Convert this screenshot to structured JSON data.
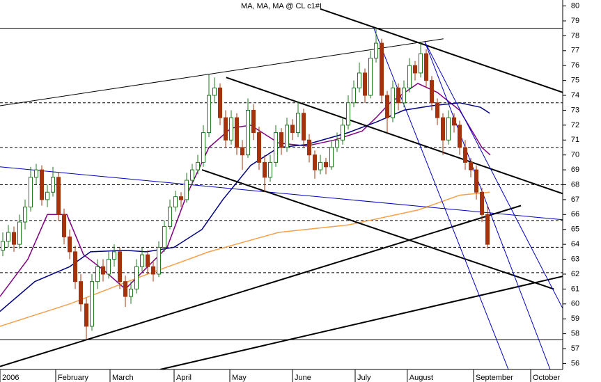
{
  "chart_data": {
    "type": "candlestick",
    "title": "MA, MA, MA @ CL c1#I",
    "xlim": [
      -0.5,
      100.5
    ],
    "ylim": [
      55.6,
      80.4
    ],
    "xticks": [
      {
        "value": -0.5,
        "label": "2006"
      },
      {
        "value": 9.5,
        "label": "February"
      },
      {
        "value": 19.25,
        "label": "March"
      },
      {
        "value": 30.75,
        "label": "April"
      },
      {
        "value": 40.75,
        "label": "May"
      },
      {
        "value": 52,
        "label": "June"
      },
      {
        "value": 63.25,
        "label": "July"
      },
      {
        "value": 72.6,
        "label": "August"
      },
      {
        "value": 84.5,
        "label": "September"
      },
      {
        "value": 94.75,
        "label": "October"
      }
    ],
    "yticks": [
      56,
      57,
      58,
      59,
      60,
      61,
      62,
      63,
      64,
      65,
      66,
      67,
      68,
      69,
      70,
      71,
      72,
      73,
      74,
      75,
      76,
      77,
      78,
      79,
      80
    ],
    "up_color": "#1f7a1f",
    "down_color": "#a5320c",
    "candles": [
      [
        63.6,
        64.8,
        63.2,
        64.2
      ],
      [
        64.2,
        65.3,
        63.8,
        64.8
      ],
      [
        64.8,
        65.2,
        63.5,
        64.0
      ],
      [
        64.0,
        66.0,
        63.7,
        65.5
      ],
      [
        65.5,
        67.0,
        65.0,
        66.5
      ],
      [
        66.5,
        69.2,
        66.2,
        68.5
      ],
      [
        68.5,
        69.4,
        68.0,
        69.0
      ],
      [
        69.0,
        69.3,
        66.6,
        67.0
      ],
      [
        67.0,
        68.0,
        66.5,
        67.5
      ],
      [
        67.5,
        69.2,
        67.2,
        68.5
      ],
      [
        68.5,
        68.8,
        65.6,
        66.0
      ],
      [
        66.0,
        66.4,
        64.0,
        64.5
      ],
      [
        64.5,
        65.0,
        63.0,
        63.5
      ],
      [
        63.5,
        63.9,
        61.0,
        61.5
      ],
      [
        61.5,
        62.0,
        59.5,
        60.0
      ],
      [
        60.0,
        60.4,
        57.6,
        58.5
      ],
      [
        58.5,
        62.0,
        58.2,
        61.5
      ],
      [
        61.5,
        63.0,
        61.0,
        62.5
      ],
      [
        62.5,
        63.0,
        61.5,
        62.0
      ],
      [
        62.0,
        63.5,
        61.7,
        63.0
      ],
      [
        63.0,
        64.0,
        62.5,
        63.5
      ],
      [
        63.5,
        63.8,
        61.0,
        61.5
      ],
      [
        61.5,
        61.9,
        59.8,
        60.5
      ],
      [
        60.5,
        61.5,
        60.0,
        61.0
      ],
      [
        61.0,
        63.0,
        60.7,
        62.5
      ],
      [
        62.5,
        63.8,
        62.2,
        63.3
      ],
      [
        63.3,
        63.6,
        62.0,
        62.5
      ],
      [
        62.5,
        62.9,
        61.5,
        62.0
      ],
      [
        62.0,
        64.2,
        61.8,
        63.8
      ],
      [
        63.8,
        65.6,
        63.5,
        65.2
      ],
      [
        65.2,
        67.0,
        65.0,
        66.5
      ],
      [
        66.5,
        67.6,
        66.2,
        67.2
      ],
      [
        67.2,
        67.5,
        66.5,
        67.0
      ],
      [
        67.0,
        68.8,
        66.8,
        68.3
      ],
      [
        68.3,
        69.4,
        68.0,
        69.0
      ],
      [
        69.0,
        70.0,
        68.7,
        69.5
      ],
      [
        69.5,
        72.0,
        69.2,
        71.5
      ],
      [
        71.5,
        75.4,
        71.2,
        74.0
      ],
      [
        74.0,
        75.2,
        73.5,
        74.5
      ],
      [
        74.5,
        74.8,
        72.0,
        72.5
      ],
      [
        72.5,
        73.0,
        70.5,
        71.0
      ],
      [
        71.0,
        73.0,
        70.7,
        72.5
      ],
      [
        72.5,
        72.8,
        70.0,
        70.5
      ],
      [
        70.5,
        71.0,
        69.0,
        70.0
      ],
      [
        70.0,
        73.8,
        69.8,
        73.0
      ],
      [
        73.0,
        73.4,
        71.0,
        71.5
      ],
      [
        71.5,
        71.9,
        69.0,
        69.5
      ],
      [
        69.5,
        70.0,
        67.5,
        68.5
      ],
      [
        68.5,
        70.0,
        68.2,
        69.5
      ],
      [
        69.5,
        72.0,
        69.2,
        71.5
      ],
      [
        71.5,
        71.8,
        70.0,
        70.5
      ],
      [
        70.5,
        72.5,
        70.2,
        72.0
      ],
      [
        72.0,
        72.4,
        71.0,
        71.5
      ],
      [
        71.5,
        73.6,
        71.2,
        72.8
      ],
      [
        72.8,
        73.1,
        70.5,
        71.0
      ],
      [
        71.0,
        71.4,
        69.5,
        70.0
      ],
      [
        70.0,
        70.3,
        68.4,
        69.0
      ],
      [
        69.0,
        70.0,
        68.7,
        69.5
      ],
      [
        69.5,
        69.8,
        68.7,
        69.2
      ],
      [
        69.2,
        71.0,
        69.0,
        70.5
      ],
      [
        70.5,
        71.5,
        70.2,
        71.0
      ],
      [
        71.0,
        72.5,
        70.7,
        72.0
      ],
      [
        72.0,
        74.0,
        71.7,
        73.5
      ],
      [
        73.5,
        75.0,
        73.2,
        74.5
      ],
      [
        74.5,
        76.2,
        74.2,
        75.5
      ],
      [
        75.5,
        75.8,
        73.5,
        74.0
      ],
      [
        74.0,
        77.0,
        73.8,
        76.5
      ],
      [
        76.5,
        78.5,
        76.2,
        77.5
      ],
      [
        77.5,
        77.8,
        73.5,
        74.0
      ],
      [
        74.0,
        74.3,
        71.5,
        72.5
      ],
      [
        72.5,
        75.0,
        72.2,
        74.5
      ],
      [
        74.5,
        74.8,
        73.0,
        73.5
      ],
      [
        73.5,
        75.0,
        73.2,
        74.5
      ],
      [
        74.5,
        76.5,
        74.2,
        76.0
      ],
      [
        76.0,
        76.3,
        75.0,
        75.5
      ],
      [
        75.5,
        77.6,
        75.2,
        76.8
      ],
      [
        76.8,
        77.1,
        74.5,
        75.0
      ],
      [
        75.0,
        75.3,
        73.0,
        73.5
      ],
      [
        73.5,
        73.8,
        72.0,
        72.5
      ],
      [
        72.5,
        72.8,
        70.0,
        71.0
      ],
      [
        71.0,
        73.0,
        70.7,
        72.5
      ],
      [
        72.5,
        72.8,
        71.5,
        72.0
      ],
      [
        72.0,
        72.3,
        70.0,
        70.5
      ],
      [
        70.5,
        71.0,
        69.0,
        69.5
      ],
      [
        69.5,
        69.8,
        68.5,
        69.0
      ],
      [
        69.0,
        69.3,
        67.0,
        67.5
      ],
      [
        67.5,
        67.8,
        65.5,
        66.0
      ],
      [
        66.0,
        66.6,
        63.7,
        64.0
      ]
    ],
    "series": [
      {
        "color": "#800080",
        "x": [
          -0.5,
          4.5,
          8,
          11.5,
          14.5,
          18,
          22,
          26,
          29.5,
          33,
          37,
          41,
          44.5,
          49.5,
          54.5,
          59.5,
          64.5,
          67,
          69.5,
          74.5,
          78,
          82,
          86,
          87.5
        ],
        "values": [
          60.5,
          63,
          66,
          66,
          63.3,
          62.3,
          61,
          62.5,
          63.8,
          67.3,
          70.5,
          71.8,
          72,
          70.8,
          70.6,
          71,
          71.6,
          72.5,
          73.5,
          74.8,
          74.2,
          73,
          70.5,
          70
        ]
      },
      {
        "color": "#000080",
        "x": [
          -0.5,
          5.75,
          12,
          15.75,
          22,
          25.75,
          30.75,
          35.75,
          39.5,
          44.5,
          49.5,
          54.5,
          62,
          67,
          72,
          77,
          82,
          85.75,
          87.4
        ],
        "values": [
          59.5,
          61.5,
          62.5,
          63.5,
          63.6,
          63.5,
          63.8,
          65,
          67,
          69.3,
          70.5,
          70.7,
          71.5,
          72.2,
          73,
          73.3,
          73.5,
          73.2,
          72.8
        ]
      },
      {
        "color": "#f5a04a",
        "x": [
          -0.5,
          12,
          24.5,
          37,
          49.5,
          62,
          74.5,
          82,
          87.4
        ],
        "values": [
          58.5,
          60,
          61.8,
          63.5,
          64.8,
          65.3,
          66.3,
          67.3,
          67.5
        ]
      }
    ],
    "lines": [
      {
        "color": "#000000",
        "width": 1,
        "x": [
          -0.5,
          79.1
        ],
        "y": [
          73.3,
          77.8
        ]
      },
      {
        "color": "#0000c0",
        "width": 1,
        "x": [
          -0.5,
          102
        ],
        "y": [
          69.2,
          65.6
        ]
      },
      {
        "color": "#000000",
        "width": 2,
        "x": [
          40.1,
          100.5
        ],
        "y": [
          75.2,
          67.4
        ]
      },
      {
        "color": "#000000",
        "width": 2,
        "x": [
          35.75,
          98.9
        ],
        "y": [
          69,
          61
        ]
      },
      {
        "color": "#000000",
        "width": 2,
        "x": [
          -0.5,
          93
        ],
        "y": [
          55.8,
          66.6
        ]
      },
      {
        "color": "#000000",
        "width": 2,
        "x": [
          28.25,
          104.5
        ],
        "y": [
          55.6,
          62.2
        ]
      },
      {
        "color": "#000000",
        "width": 2,
        "x": [
          57,
          100.5
        ],
        "y": [
          79.8,
          74.2
        ]
      },
      {
        "color": "#0000c0",
        "width": 1,
        "x": [
          66.6,
          90.75
        ],
        "y": [
          78.5,
          55.6
        ]
      },
      {
        "color": "#0000c0",
        "width": 1,
        "x": [
          75.75,
          100.5
        ],
        "y": [
          77.6,
          59.7
        ]
      },
      {
        "color": "#0000c0",
        "width": 1,
        "x": [
          75.75,
          98.25
        ],
        "y": [
          77.6,
          55.6
        ]
      }
    ],
    "levels": [
      {
        "value": 78.5,
        "style": "solid"
      },
      {
        "value": 57.6,
        "style": "solid"
      },
      {
        "value": 73.5,
        "style": "dashed"
      },
      {
        "value": 70.5,
        "style": "dashed"
      },
      {
        "value": 68,
        "style": "dashed"
      },
      {
        "value": 65.6,
        "style": "dashed"
      },
      {
        "value": 63.8,
        "style": "dashed"
      },
      {
        "value": 62.1,
        "style": "dashed"
      }
    ]
  }
}
